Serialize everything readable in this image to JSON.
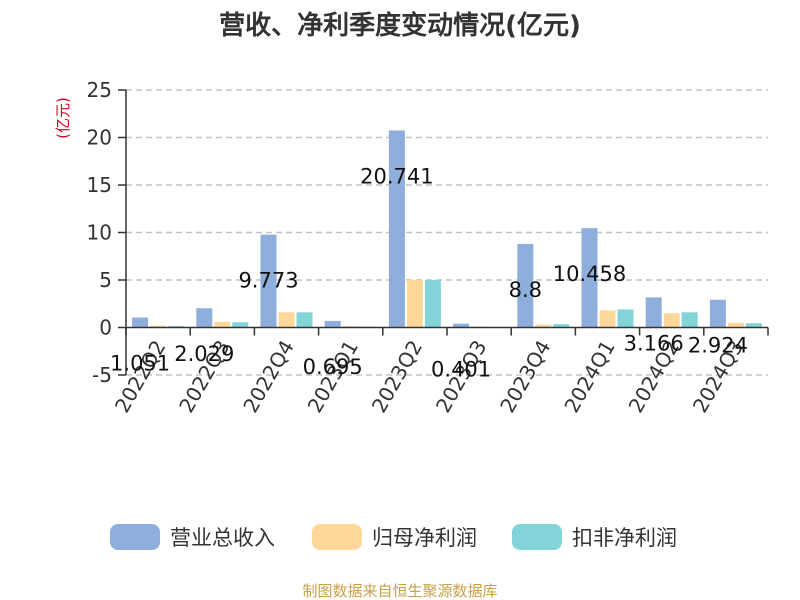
{
  "chart_data": {
    "type": "bar",
    "title": "营收、净利季度变动情况(亿元)",
    "ylabel": "(亿元)",
    "ylim": [
      -5,
      25
    ],
    "yticks": [
      -5,
      0,
      5,
      10,
      15,
      20,
      25
    ],
    "grid": true,
    "legend_position": "bottom",
    "categories": [
      "2022Q2",
      "2022Q3",
      "2022Q4",
      "2023Q1",
      "2023Q2",
      "2023Q3",
      "2023Q4",
      "2024Q1",
      "2024Q2",
      "2024Q3"
    ],
    "series": [
      {
        "name": "营业总收入",
        "color": "#8eaedc",
        "labeled": true,
        "values": [
          1.051,
          2.029,
          9.773,
          0.695,
          20.741,
          0.401,
          8.8,
          10.458,
          3.166,
          2.924
        ]
      },
      {
        "name": "归母净利润",
        "color": "#fdd89a",
        "labeled": false,
        "values": [
          0.2,
          0.6,
          1.6,
          0.15,
          5.0,
          0.1,
          0.3,
          1.8,
          1.5,
          0.5
        ]
      },
      {
        "name": "扣非净利润",
        "color": "#83d4d9",
        "labeled": false,
        "values": [
          0.15,
          0.55,
          1.6,
          0.1,
          5.0,
          0.05,
          0.35,
          1.9,
          1.6,
          0.45
        ]
      }
    ],
    "data_labels": [
      "1.051",
      "2.029",
      "9.773",
      "0.695",
      "20.741",
      "0.401",
      "8.8",
      "10.458",
      "3.166",
      "2.924"
    ],
    "source": "制图数据来自恒生聚源数据库"
  }
}
